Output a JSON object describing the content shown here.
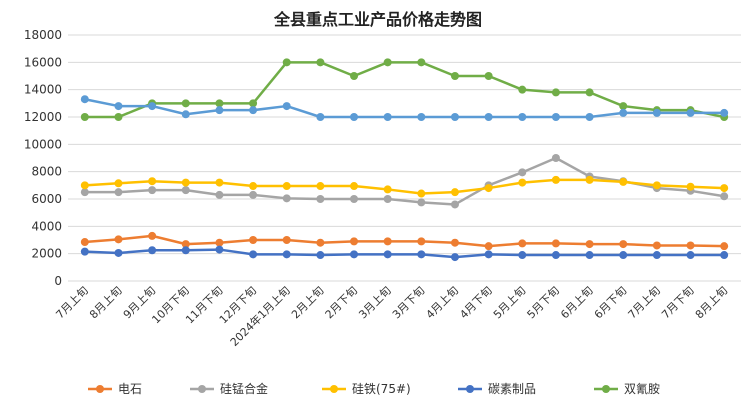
{
  "chart_data": {
    "type": "line",
    "title": "全县重点工业产品价格走势图",
    "xlabel": "",
    "ylabel": "",
    "ylim": [
      0,
      18000
    ],
    "yticks": [
      0,
      2000,
      4000,
      6000,
      8000,
      10000,
      12000,
      14000,
      16000,
      18000
    ],
    "grid": true,
    "legend_position": "bottom",
    "categories": [
      "7月上旬",
      "8月上旬",
      "9月上旬",
      "10月下旬",
      "11月下旬",
      "12月下旬",
      "2024年1月上旬",
      "2月上旬",
      "2月下旬",
      "3月上旬",
      "3月下旬",
      "4月上旬",
      "4月下旬",
      "5月上旬",
      "5月下旬",
      "6月上旬",
      "6月下旬",
      "7月上旬",
      "7月下旬",
      "8月上旬"
    ],
    "series": [
      {
        "name": "电石",
        "color": "#ED7D31",
        "values": [
          2850,
          3050,
          3300,
          2700,
          2800,
          3000,
          3000,
          2800,
          2900,
          2900,
          2900,
          2800,
          2550,
          2750,
          2750,
          2700,
          2700,
          2600,
          2600,
          2550
        ]
      },
      {
        "name": "硅锰合金",
        "color": "#A5A5A5",
        "values": [
          6500,
          6500,
          6650,
          6650,
          6300,
          6300,
          6050,
          6000,
          6000,
          6000,
          5750,
          5600,
          7000,
          7950,
          9000,
          7650,
          7300,
          6800,
          6600,
          6200
        ]
      },
      {
        "name": "硅铁(75#)",
        "color": "#FFC000",
        "values": [
          7000,
          7150,
          7300,
          7200,
          7200,
          6950,
          6950,
          6950,
          6950,
          6700,
          6400,
          6500,
          6800,
          7200,
          7400,
          7400,
          7250,
          7000,
          6900,
          6800
        ]
      },
      {
        "name": "碳素制品",
        "color": "#4472C4",
        "values": [
          2150,
          2050,
          2250,
          2250,
          2300,
          1950,
          1950,
          1900,
          1950,
          1950,
          1950,
          1750,
          1950,
          1900,
          1900,
          1900,
          1900,
          1900,
          1900,
          1900
        ]
      },
      {
        "name": "双氰胺",
        "color": "#70AD47",
        "values": [
          12000,
          12000,
          13000,
          13000,
          13000,
          13000,
          16000,
          16000,
          15000,
          16000,
          16000,
          15000,
          15000,
          14000,
          13800,
          13800,
          12800,
          12500,
          12500,
          12000
        ]
      },
      {
        "name": "",
        "color": "#5B9BD5",
        "values": [
          13300,
          12800,
          12800,
          12200,
          12500,
          12500,
          12800,
          12000,
          12000,
          12000,
          12000,
          12000,
          12000,
          12000,
          12000,
          12000,
          12300,
          12300,
          12300,
          12300
        ]
      }
    ]
  }
}
